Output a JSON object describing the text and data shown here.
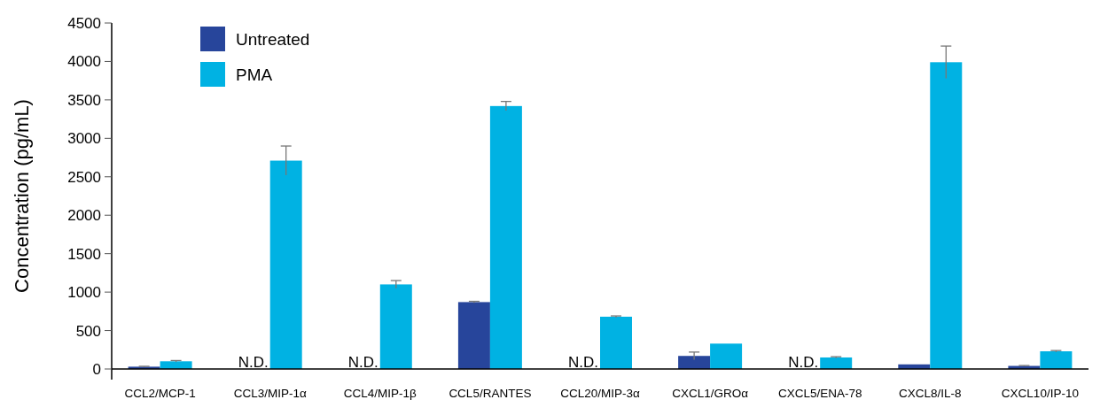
{
  "chart_data": {
    "type": "bar",
    "ylabel": "Concentration (pg/mL)",
    "categories": [
      "CCL2/MCP-1",
      "CCL3/MIP-1α",
      "CCL4/MIP-1β",
      "CCL5/RANTES",
      "CCL20/MIP-3α",
      "CXCL1/GROα",
      "CXCL5/ENA-78",
      "CXCL8/IL-8",
      "CXCL10/IP-10"
    ],
    "series": [
      {
        "name": "Untreated",
        "color": "#27459b",
        "values": [
          30,
          null,
          null,
          870,
          null,
          170,
          null,
          60,
          40
        ],
        "errors": [
          5,
          null,
          null,
          10,
          null,
          50,
          null,
          null,
          5
        ]
      },
      {
        "name": "PMA",
        "color": "#00b2e3",
        "values": [
          100,
          2710,
          1100,
          3420,
          680,
          330,
          150,
          3990,
          230
        ],
        "errors": [
          10,
          190,
          50,
          60,
          10,
          null,
          10,
          210,
          10
        ]
      }
    ],
    "ylim": [
      0,
      4500
    ],
    "yticks": [
      0,
      500,
      1000,
      1500,
      2000,
      2500,
      3000,
      3500,
      4000,
      4500
    ],
    "grid": false,
    "legend": "top left",
    "annotations": [
      {
        "text": "N.D.",
        "x": "CCL3/MIP-1α",
        "y": 0
      },
      {
        "text": "N.D.",
        "x": "CCL4/MIP-1β",
        "y": 0
      },
      {
        "text": "N.D.",
        "x": "CCL20/MIP-3α",
        "y": 0
      },
      {
        "text": "N.D.",
        "x": "CXCL5/ENA-78",
        "y": 0
      }
    ]
  }
}
